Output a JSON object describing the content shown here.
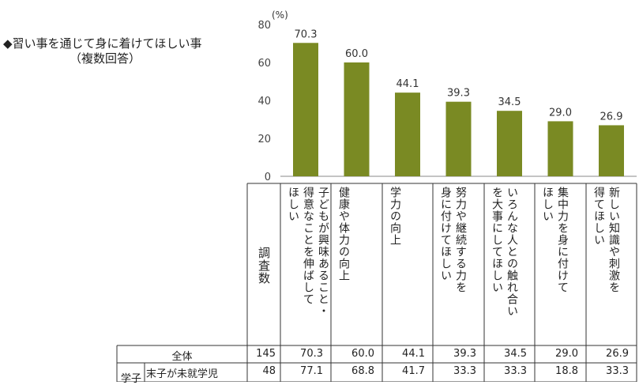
{
  "title": {
    "line1": "◆習い事を通じて身に着けてほしい事",
    "line2": "（複数回答）"
  },
  "chart_data": {
    "type": "bar",
    "unit_label": "(%)",
    "y_ticks": [
      "0",
      "20",
      "40",
      "60",
      "80"
    ],
    "ylim": [
      0,
      80
    ],
    "bar_color": "#7a8a23",
    "categories": [
      "子どもが興味あること・得意なことを伸ばしてほしい",
      "健康や体力の向上",
      "学力の向上",
      "努力や継続する力を身に付けてほしい",
      "いろんな人との触れ合いを大事にしてほしい",
      "集中力を身に付けてほしい",
      "新しい知識や刺激を得てほしい"
    ],
    "values": [
      70.3,
      60.0,
      44.1,
      39.3,
      34.5,
      29.0,
      26.9
    ],
    "value_labels": [
      "70.3",
      "60.0",
      "44.1",
      "39.3",
      "34.5",
      "29.0",
      "26.9"
    ]
  },
  "table": {
    "count_header": "調査数",
    "headers": [
      [
        "子どもが興味あること・",
        "得意なことを伸ばして",
        "ほしい"
      ],
      [
        "健康や体力の向上"
      ],
      [
        "学力の向上"
      ],
      [
        "努力や継続する力を",
        "身に付けてほしい"
      ],
      [
        "いろんな人との触れ合い",
        "を大事にしてほしい"
      ],
      [
        "集中力を身に付けて",
        "ほしい"
      ],
      [
        "新しい知識や刺激を",
        "得てほしい"
      ]
    ],
    "rows": [
      {
        "group": "",
        "label": "全体",
        "count": "145",
        "values": [
          "70.3",
          "60.0",
          "44.1",
          "39.3",
          "34.5",
          "29.0",
          "26.9"
        ]
      },
      {
        "group": "学子",
        "label": "末子が未就学児",
        "count": "48",
        "values": [
          "77.1",
          "68.8",
          "41.7",
          "33.3",
          "33.3",
          "18.8",
          "33.3"
        ]
      }
    ]
  }
}
